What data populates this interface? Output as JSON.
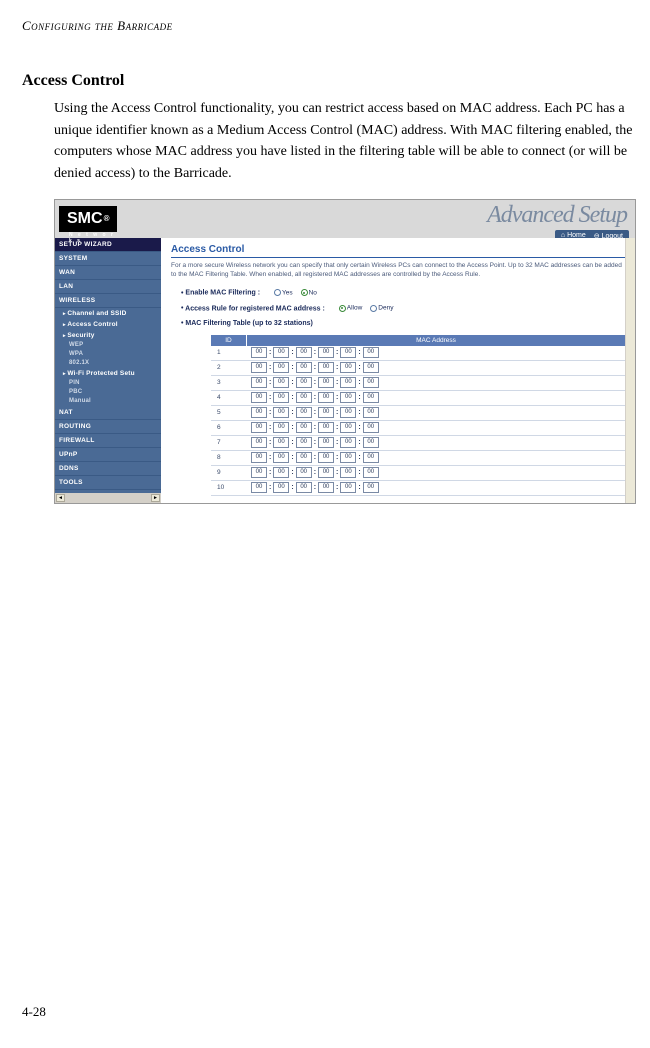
{
  "doc": {
    "header": "Configuring the Barricade",
    "section_title": "Access Control",
    "body": "Using the Access Control functionality, you can restrict access based on MAC address. Each PC has a unique identifier known as a Medium Access Control (MAC) address. With MAC filtering enabled, the computers whose MAC address you have listed in the filtering table will be able to connect (or will be denied access) to the Barricade.",
    "page_number": "4-28"
  },
  "ui": {
    "logo": "SMC",
    "logo_reg": "®",
    "logo_sub": "N e t w o r k s",
    "banner": "Advanced Setup",
    "util": {
      "home": "Home",
      "logout": "Logout"
    },
    "nav": {
      "setup": "SETUP WIZARD",
      "system": "SYSTEM",
      "wan": "WAN",
      "lan": "LAN",
      "wireless": "WIRELESS",
      "wl_subs": {
        "channel": "Channel and SSID",
        "access": "Access Control",
        "security": "Security",
        "wep": "WEP",
        "wpa": "WPA",
        "x": "802.1X",
        "wps": "Wi-Fi Protected Setu",
        "pin": "PIN",
        "pbc": "PBC",
        "manual": "Manual"
      },
      "nat": "NAT",
      "routing": "ROUTING",
      "firewall": "FIREWALL",
      "upnp": "UPnP",
      "ddns": "DDNS",
      "tools": "TOOLS"
    },
    "panel": {
      "title": "Access Control",
      "desc": "For a more secure Wireless network you can specify that only certain Wireless PCs can connect to the Access Point. Up to 32 MAC addresses can be added to the MAC Filtering Table. When enabled, all registered MAC addresses are controlled by the Access Rule.",
      "enable_label": "Enable MAC Filtering :",
      "yes": "Yes",
      "no": "No",
      "rule_label": "Access Rule for registered MAC address :",
      "allow": "Allow",
      "deny": "Deny",
      "table_label": "MAC Filtering Table (up to 32 stations)",
      "th_id": "ID",
      "th_mac": "MAC Address",
      "octet": "00",
      "rows": [
        "1",
        "2",
        "3",
        "4",
        "5",
        "6",
        "7",
        "8",
        "9",
        "10"
      ]
    }
  }
}
